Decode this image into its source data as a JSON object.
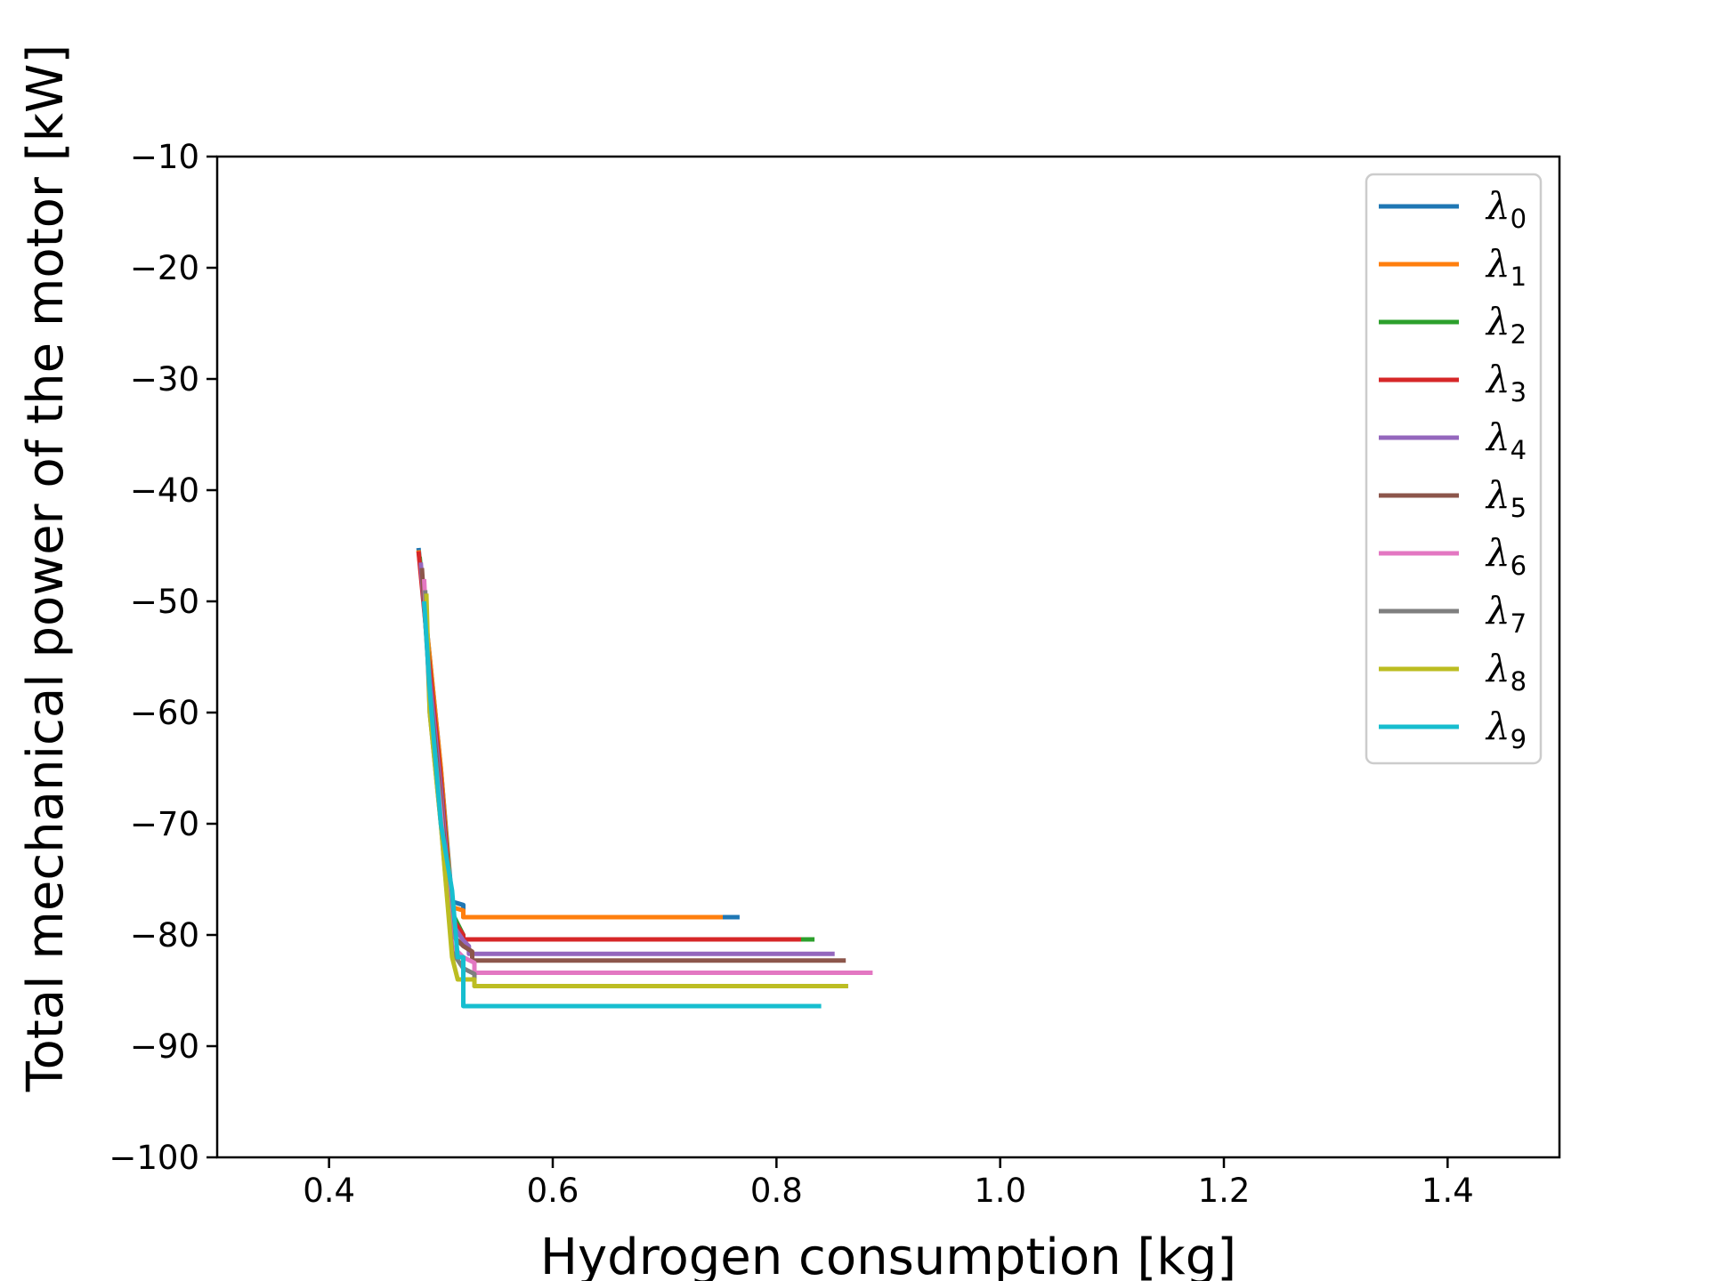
{
  "chart_data": {
    "type": "line",
    "title": "",
    "xlabel": "Hydrogen consumption [kg]",
    "ylabel": "Total mechanical power of the motor [kW]",
    "xlim": [
      0.3,
      1.5
    ],
    "ylim": [
      -100,
      -10
    ],
    "xticks": [
      0.4,
      0.6,
      0.8,
      1.0,
      1.2,
      1.4
    ],
    "xtick_labels": [
      "0.4",
      "0.6",
      "0.8",
      "1.0",
      "1.2",
      "1.4"
    ],
    "yticks": [
      -10,
      -20,
      -30,
      -40,
      -50,
      -60,
      -70,
      -80,
      -90,
      -100
    ],
    "ytick_labels": [
      "−10",
      "−20",
      "−30",
      "−40",
      "−50",
      "−60",
      "−70",
      "−80",
      "−90",
      "−100"
    ],
    "grid": false,
    "legend_position": "top-right",
    "series": [
      {
        "name": "λ",
        "sub": "0",
        "color": "#1f77b4",
        "x": [
          0.48,
          0.49,
          0.5,
          0.51,
          0.52,
          0.52,
          0.52,
          0.767
        ],
        "y": [
          -45.2,
          -55,
          -65,
          -77,
          -77.3,
          -77.6,
          -78.4,
          -78.4
        ]
      },
      {
        "name": "λ",
        "sub": "1",
        "color": "#ff7f0e",
        "x": [
          0.48,
          0.49,
          0.5,
          0.51,
          0.52,
          0.52,
          0.752
        ],
        "y": [
          -45.4,
          -55,
          -65,
          -77.5,
          -77.8,
          -78.4,
          -78.4
        ]
      },
      {
        "name": "λ",
        "sub": "2",
        "color": "#2ca02c",
        "x": [
          0.481,
          0.49,
          0.5,
          0.51,
          0.52,
          0.52,
          0.834
        ],
        "y": [
          -46,
          -56,
          -66,
          -78,
          -80,
          -80.4,
          -80.4
        ]
      },
      {
        "name": "λ",
        "sub": "3",
        "color": "#d62728",
        "x": [
          0.48,
          0.49,
          0.5,
          0.51,
          0.52,
          0.52,
          0.822
        ],
        "y": [
          -45.5,
          -56,
          -66,
          -78.5,
          -80,
          -80.4,
          -80.4
        ]
      },
      {
        "name": "λ",
        "sub": "4",
        "color": "#9467bd",
        "x": [
          0.482,
          0.49,
          0.5,
          0.51,
          0.52,
          0.525,
          0.525,
          0.852
        ],
        "y": [
          -46.5,
          -57,
          -67,
          -79,
          -80.5,
          -81,
          -81.7,
          -81.7
        ]
      },
      {
        "name": "λ",
        "sub": "5",
        "color": "#8c564b",
        "x": [
          0.483,
          0.49,
          0.5,
          0.51,
          0.52,
          0.528,
          0.528,
          0.862
        ],
        "y": [
          -47,
          -58,
          -68,
          -80,
          -81,
          -81.5,
          -82.3,
          -82.3
        ]
      },
      {
        "name": "λ",
        "sub": "6",
        "color": "#e377c2",
        "x": [
          0.485,
          0.49,
          0.5,
          0.51,
          0.52,
          0.53,
          0.53,
          0.886
        ],
        "y": [
          -48,
          -59,
          -69,
          -81,
          -82,
          -82.5,
          -83.4,
          -83.4
        ]
      },
      {
        "name": "λ",
        "sub": "7",
        "color": "#7f7f7f",
        "x": [
          0.486,
          0.49,
          0.5,
          0.51,
          0.52,
          0.53,
          0.53,
          0.864
        ],
        "y": [
          -49,
          -60,
          -70,
          -81.5,
          -83,
          -83.5,
          -84.6,
          -84.6
        ]
      },
      {
        "name": "λ",
        "sub": "8",
        "color": "#bcbd22",
        "x": [
          0.487,
          0.49,
          0.5,
          0.51,
          0.515,
          0.53,
          0.53,
          0.864
        ],
        "y": [
          -49.3,
          -60,
          -70,
          -82,
          -84,
          -84,
          -84.6,
          -84.6
        ]
      },
      {
        "name": "λ",
        "sub": "9",
        "color": "#17becf",
        "x": [
          0.485,
          0.49,
          0.5,
          0.51,
          0.515,
          0.52,
          0.52,
          0.84
        ],
        "y": [
          -50,
          -58,
          -70,
          -76,
          -82,
          -82,
          -86.4,
          -86.4
        ]
      }
    ]
  }
}
